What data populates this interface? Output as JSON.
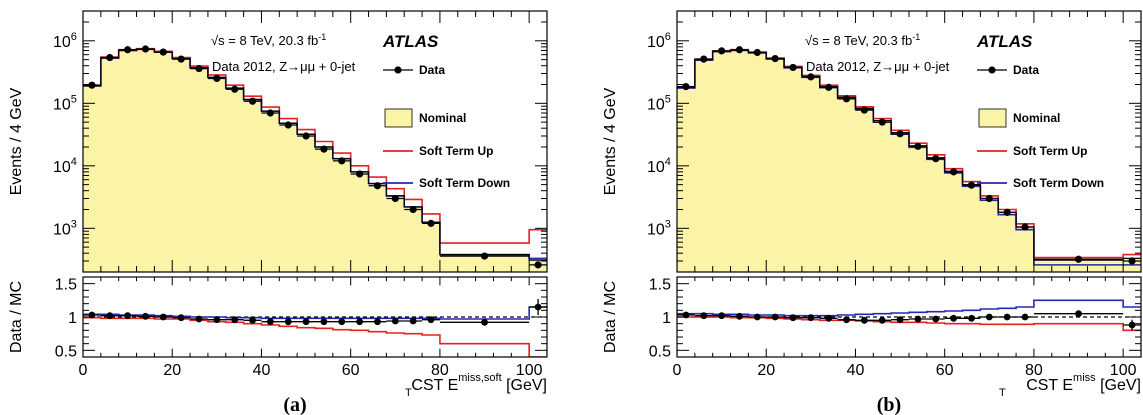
{
  "chart_data": [
    {
      "type": "histogram",
      "panel_label": "(a)",
      "xlabel": "CST E",
      "xlabel_sub": "T",
      "xlabel_sup": "miss,soft",
      "xlabel_unit": "[GeV]",
      "ylabel": "Events / 4 GeV",
      "ratio_ylabel": "Data / MC",
      "xlim": [
        0,
        104
      ],
      "ylim_log": [
        200,
        3000000
      ],
      "ratio_ylim": [
        0.4,
        1.6
      ],
      "x_ticks": [
        0,
        20,
        40,
        60,
        80,
        100
      ],
      "y_ticks": [
        {
          "value": 1000,
          "base": "10",
          "exp": "3"
        },
        {
          "value": 10000,
          "base": "10",
          "exp": "4"
        },
        {
          "value": 100000,
          "base": "10",
          "exp": "5"
        },
        {
          "value": 1000000,
          "base": "10",
          "exp": "6"
        }
      ],
      "ratio_ticks": [
        {
          "value": 0.5,
          "label": "0.5"
        },
        {
          "value": 1,
          "label": "1"
        },
        {
          "value": 1.5,
          "label": "1.5"
        }
      ],
      "annotation_energy": "√s = 8 TeV, 20.3 fb",
      "annotation_energy_sup": "-1",
      "annotation_data": "Data 2012, Z→μμ + 0-jet",
      "experiment": "ATLAS",
      "legend": {
        "data": "Data",
        "nominal": "Nominal",
        "up": "Soft Term Up",
        "down": "Soft Term Down"
      },
      "bin_edges": [
        0,
        4,
        8,
        12,
        16,
        20,
        24,
        28,
        32,
        36,
        40,
        44,
        48,
        52,
        56,
        60,
        64,
        68,
        72,
        76,
        80,
        100,
        104
      ],
      "nominal": [
        190000,
        530000,
        700000,
        730000,
        660000,
        520000,
        370000,
        260000,
        175000,
        115000,
        75000,
        48000,
        32000,
        20000,
        13000,
        8000,
        5200,
        3300,
        2200,
        1250,
        380,
        310
      ],
      "soft_term_up": [
        195000,
        550000,
        720000,
        750000,
        680000,
        540000,
        395000,
        285000,
        195000,
        130000,
        87000,
        57000,
        38000,
        24500,
        16000,
        10000,
        6600,
        4300,
        2900,
        1700,
        580,
        950
      ],
      "soft_term_down": [
        190000,
        530000,
        700000,
        730000,
        660000,
        520000,
        370000,
        260000,
        175000,
        115000,
        75000,
        48000,
        32000,
        20000,
        13000,
        8000,
        5200,
        3300,
        2200,
        1250,
        380,
        330
      ],
      "data": {
        "x": [
          2,
          6,
          10,
          14,
          18,
          22,
          26,
          30,
          34,
          38,
          42,
          46,
          50,
          54,
          58,
          62,
          66,
          70,
          74,
          78,
          90,
          102
        ],
        "y": [
          195000,
          540000,
          720000,
          740000,
          660000,
          510000,
          360000,
          250000,
          168000,
          108000,
          70000,
          45000,
          30000,
          18500,
          12000,
          7400,
          4800,
          3000,
          2000,
          1200,
          360,
          260
        ]
      },
      "ratio": {
        "data_mc": [
          1.03,
          1.02,
          1.02,
          1.01,
          1.0,
          0.99,
          0.97,
          0.96,
          0.96,
          0.95,
          0.93,
          0.93,
          0.93,
          0.93,
          0.93,
          0.93,
          0.93,
          0.94,
          0.94,
          0.96,
          0.92,
          1.15
        ],
        "data_err": [
          0.02,
          0.02,
          0.02,
          0.02,
          0.02,
          0.02,
          0.02,
          0.02,
          0.02,
          0.02,
          0.02,
          0.02,
          0.02,
          0.02,
          0.02,
          0.02,
          0.03,
          0.03,
          0.03,
          0.04,
          0.04,
          0.12
        ],
        "up": [
          0.99,
          0.98,
          0.98,
          0.98,
          0.97,
          0.97,
          0.95,
          0.93,
          0.92,
          0.9,
          0.88,
          0.86,
          0.84,
          0.83,
          0.81,
          0.8,
          0.78,
          0.76,
          0.75,
          0.73,
          0.6,
          0.4
        ],
        "down": [
          1.04,
          1.04,
          1.03,
          1.03,
          1.02,
          1.01,
          1.0,
          1.0,
          0.99,
          0.99,
          0.98,
          0.98,
          0.98,
          0.98,
          0.98,
          0.98,
          0.98,
          0.98,
          0.98,
          0.98,
          0.97,
          1.15
        ]
      }
    },
    {
      "type": "histogram",
      "panel_label": "(b)",
      "xlabel": "CST E",
      "xlabel_sub": "T",
      "xlabel_sup": "miss",
      "xlabel_unit": "[GeV]",
      "ylabel": "Events / 4 GeV",
      "ratio_ylabel": "Data / MC",
      "xlim": [
        0,
        104
      ],
      "ylim_log": [
        200,
        3000000
      ],
      "ratio_ylim": [
        0.4,
        1.6
      ],
      "x_ticks": [
        0,
        20,
        40,
        60,
        80,
        100
      ],
      "y_ticks": [
        {
          "value": 1000,
          "base": "10",
          "exp": "3"
        },
        {
          "value": 10000,
          "base": "10",
          "exp": "4"
        },
        {
          "value": 100000,
          "base": "10",
          "exp": "5"
        },
        {
          "value": 1000000,
          "base": "10",
          "exp": "6"
        }
      ],
      "ratio_ticks": [
        {
          "value": 0.5,
          "label": "0.5"
        },
        {
          "value": 1,
          "label": "1"
        },
        {
          "value": 1.5,
          "label": "1.5"
        }
      ],
      "annotation_energy": "√s = 8 TeV, 20.3 fb",
      "annotation_energy_sup": "-1",
      "annotation_data": "Data 2012, Z→μμ + 0-jet",
      "experiment": "ATLAS",
      "legend": {
        "data": "Data",
        "nominal": "Nominal",
        "up": "Soft Term Up",
        "down": "Soft Term Down"
      },
      "bin_edges": [
        0,
        4,
        8,
        12,
        16,
        20,
        24,
        28,
        32,
        36,
        40,
        44,
        48,
        52,
        56,
        60,
        64,
        68,
        72,
        76,
        80,
        100,
        104
      ],
      "nominal": [
        180000,
        500000,
        680000,
        710000,
        650000,
        520000,
        380000,
        270000,
        185000,
        125000,
        83000,
        53000,
        34000,
        21000,
        13500,
        8200,
        5000,
        3000,
        1800,
        1050,
        310,
        330
      ],
      "soft_term_up": [
        185000,
        510000,
        690000,
        720000,
        660000,
        530000,
        390000,
        280000,
        195000,
        132000,
        88000,
        57000,
        37000,
        23000,
        15000,
        9000,
        5600,
        3300,
        2000,
        1180,
        340,
        380
      ],
      "soft_term_down": [
        175000,
        490000,
        670000,
        700000,
        640000,
        510000,
        370000,
        260000,
        178000,
        120000,
        79000,
        50000,
        32000,
        19800,
        12700,
        7700,
        4700,
        2800,
        1650,
        950,
        260,
        260
      ],
      "data": {
        "x": [
          2,
          6,
          10,
          14,
          18,
          22,
          26,
          30,
          34,
          38,
          42,
          46,
          50,
          54,
          58,
          62,
          66,
          70,
          74,
          78,
          90,
          102
        ],
        "y": [
          185000,
          510000,
          690000,
          720000,
          650000,
          520000,
          375000,
          265000,
          180000,
          118000,
          78000,
          50000,
          32500,
          20500,
          13000,
          8000,
          4900,
          3000,
          1800,
          1050,
          320,
          300
        ]
      },
      "ratio": {
        "data_mc": [
          1.03,
          1.02,
          1.02,
          1.01,
          1.0,
          1.0,
          0.99,
          0.99,
          0.98,
          0.96,
          0.95,
          0.95,
          0.96,
          0.97,
          0.97,
          0.98,
          0.98,
          1.0,
          1.0,
          1.0,
          1.05,
          0.88
        ],
        "data_err": [
          0.02,
          0.02,
          0.02,
          0.02,
          0.02,
          0.02,
          0.02,
          0.02,
          0.02,
          0.02,
          0.02,
          0.02,
          0.02,
          0.02,
          0.02,
          0.02,
          0.03,
          0.03,
          0.03,
          0.04,
          0.04,
          0.08
        ],
        "up": [
          1.0,
          1.0,
          1.0,
          0.99,
          0.99,
          0.98,
          0.97,
          0.96,
          0.95,
          0.95,
          0.94,
          0.93,
          0.92,
          0.92,
          0.91,
          0.9,
          0.9,
          0.89,
          0.89,
          0.89,
          0.9,
          0.8
        ],
        "down": [
          1.05,
          1.05,
          1.04,
          1.04,
          1.03,
          1.03,
          1.02,
          1.02,
          1.02,
          1.03,
          1.04,
          1.05,
          1.06,
          1.07,
          1.08,
          1.09,
          1.1,
          1.12,
          1.13,
          1.15,
          1.25,
          1.15
        ]
      }
    }
  ],
  "colors": {
    "nominal_fill": "#fbf3a6",
    "up": "#e8211f",
    "down": "#2528b0",
    "data": "#000000"
  }
}
